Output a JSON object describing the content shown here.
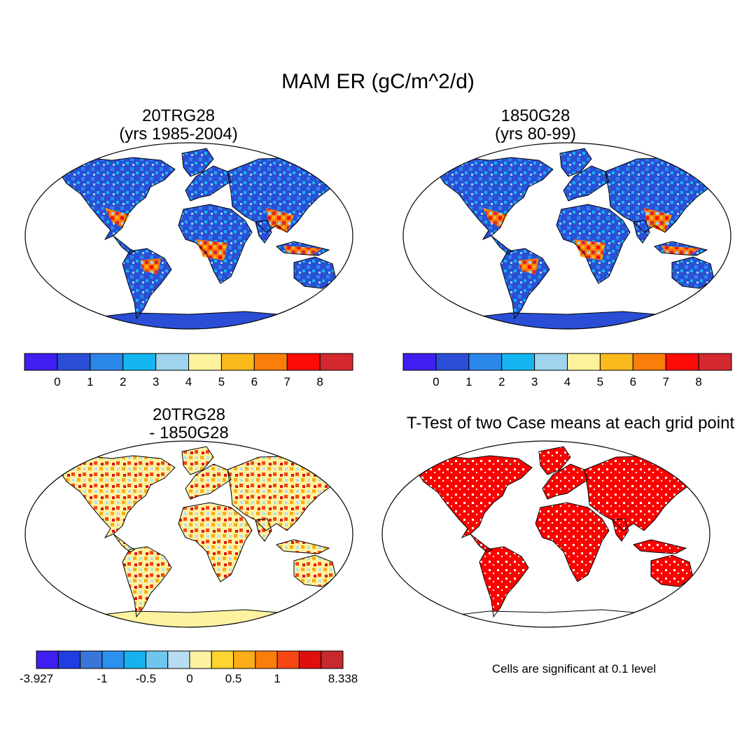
{
  "title": "MAM ER (gC/m^2/d)",
  "panels": [
    {
      "id": "case1",
      "title_line1": "20TRG28",
      "title_line2": "(yrs 1985-2004)",
      "colorbar": {
        "colors": [
          "#3f1ff2",
          "#2a4fd6",
          "#2b86ea",
          "#15b6f0",
          "#9fd3ee",
          "#fdf29b",
          "#fbb91c",
          "#fb7d0a",
          "#fd0b09",
          "#d3282e"
        ],
        "tick_labels": [
          "0",
          "1",
          "2",
          "3",
          "4",
          "5",
          "6",
          "7",
          "8"
        ]
      }
    },
    {
      "id": "case2",
      "title_line1": "1850G28",
      "title_line2": "(yrs 80-99)",
      "colorbar": {
        "colors": [
          "#3f1ff2",
          "#2a4fd6",
          "#2b86ea",
          "#15b6f0",
          "#9fd3ee",
          "#fdf29b",
          "#fbb91c",
          "#fb7d0a",
          "#fd0b09",
          "#d3282e"
        ],
        "tick_labels": [
          "0",
          "1",
          "2",
          "3",
          "4",
          "5",
          "6",
          "7",
          "8"
        ]
      }
    },
    {
      "id": "difference",
      "title_line1": "20TRG28",
      "title_line2": "- 1850G28",
      "colorbar": {
        "colors": [
          "#3f1ff2",
          "#1f3de0",
          "#3a76d9",
          "#2b90ee",
          "#16b2f0",
          "#6ec6ee",
          "#b8ddf2",
          "#fdf2a0",
          "#fdd52e",
          "#fbac17",
          "#fb7d0a",
          "#f74515",
          "#df0f10",
          "#c72a2d"
        ],
        "tick_labels": [
          "-3.927",
          "-1",
          "-0.5",
          "0",
          "0.5",
          "1",
          "8.338"
        ]
      }
    },
    {
      "id": "ttest",
      "title_line1": "T-Test of two Case means at each grid point",
      "note": "Cells are significant at 0.1 level",
      "significant_color": "#ff0000"
    }
  ]
}
